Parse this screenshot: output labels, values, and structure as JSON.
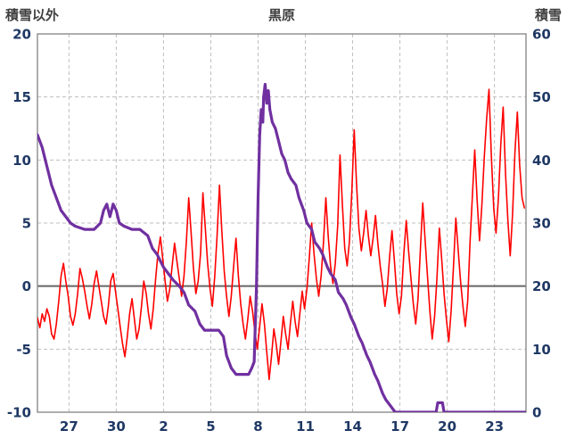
{
  "header": {
    "left_axis_title": "積雪以外",
    "title": "黒原",
    "right_axis_title": "積雪"
  },
  "colors": {
    "background": "#ffffff",
    "grid": "#bfbfbf",
    "border": "#8c8c8c",
    "zero_line": "#666666",
    "tick_text": "#1f3864",
    "title_text": "#3f3f3f",
    "red_series": "#ff0000",
    "purple_series": "#7030a0"
  },
  "chart_data": {
    "type": "line",
    "title": "黒原",
    "grid": true,
    "legend": "none",
    "left_axis": {
      "label": "積雪以外",
      "range": [
        -10,
        20
      ],
      "ticks": [
        20,
        15,
        10,
        5,
        0,
        -5,
        -10
      ]
    },
    "right_axis": {
      "label": "積雪",
      "range": [
        0,
        60
      ],
      "ticks": [
        60,
        50,
        40,
        30,
        20,
        10,
        0
      ]
    },
    "x_axis": {
      "range": [
        0,
        31
      ],
      "tick_labels": [
        "27",
        "30",
        "2",
        "5",
        "8",
        "11",
        "14",
        "17",
        "20",
        "23"
      ],
      "tick_positions": [
        2,
        5,
        8,
        11,
        14,
        17,
        20,
        23,
        26,
        29
      ]
    },
    "zero_line_left_value": 0,
    "series": [
      {
        "name": "積雪以外",
        "axis": "left",
        "color": "#ff0000",
        "width": 1.6,
        "points": [
          [
            0.0,
            -2.5
          ],
          [
            0.15,
            -3.3
          ],
          [
            0.3,
            -2.2
          ],
          [
            0.45,
            -2.8
          ],
          [
            0.6,
            -1.8
          ],
          [
            0.75,
            -2.4
          ],
          [
            0.9,
            -3.8
          ],
          [
            1.05,
            -4.2
          ],
          [
            1.2,
            -3.0
          ],
          [
            1.35,
            -1.2
          ],
          [
            1.5,
            0.8
          ],
          [
            1.65,
            1.8
          ],
          [
            1.8,
            0.4
          ],
          [
            1.95,
            -0.8
          ],
          [
            2.1,
            -2.4
          ],
          [
            2.25,
            -3.1
          ],
          [
            2.4,
            -2.2
          ],
          [
            2.55,
            -0.6
          ],
          [
            2.7,
            1.4
          ],
          [
            2.85,
            0.6
          ],
          [
            3.0,
            -0.4
          ],
          [
            3.15,
            -1.6
          ],
          [
            3.3,
            -2.6
          ],
          [
            3.45,
            -1.4
          ],
          [
            3.6,
            0.2
          ],
          [
            3.75,
            1.2
          ],
          [
            3.9,
            0.0
          ],
          [
            4.05,
            -1.2
          ],
          [
            4.2,
            -2.4
          ],
          [
            4.35,
            -3.0
          ],
          [
            4.5,
            -1.6
          ],
          [
            4.65,
            0.4
          ],
          [
            4.8,
            1.0
          ],
          [
            4.95,
            -0.4
          ],
          [
            5.1,
            -1.8
          ],
          [
            5.25,
            -3.2
          ],
          [
            5.4,
            -4.6
          ],
          [
            5.55,
            -5.6
          ],
          [
            5.7,
            -4.0
          ],
          [
            5.85,
            -2.2
          ],
          [
            6.0,
            -1.0
          ],
          [
            6.15,
            -2.6
          ],
          [
            6.3,
            -4.2
          ],
          [
            6.45,
            -3.4
          ],
          [
            6.6,
            -1.6
          ],
          [
            6.75,
            0.4
          ],
          [
            6.9,
            -0.6
          ],
          [
            7.05,
            -2.2
          ],
          [
            7.2,
            -3.4
          ],
          [
            7.35,
            -1.8
          ],
          [
            7.5,
            0.6
          ],
          [
            7.65,
            2.6
          ],
          [
            7.8,
            3.9
          ],
          [
            7.95,
            2.2
          ],
          [
            8.1,
            0.4
          ],
          [
            8.25,
            -1.2
          ],
          [
            8.4,
            -0.2
          ],
          [
            8.55,
            1.6
          ],
          [
            8.7,
            3.4
          ],
          [
            8.85,
            2.0
          ],
          [
            9.0,
            0.6
          ],
          [
            9.15,
            -0.8
          ],
          [
            9.3,
            0.8
          ],
          [
            9.45,
            3.6
          ],
          [
            9.6,
            7.0
          ],
          [
            9.75,
            4.2
          ],
          [
            9.9,
            1.4
          ],
          [
            10.05,
            -0.6
          ],
          [
            10.2,
            0.4
          ],
          [
            10.35,
            2.6
          ],
          [
            10.5,
            7.4
          ],
          [
            10.65,
            4.6
          ],
          [
            10.8,
            1.8
          ],
          [
            10.95,
            -0.2
          ],
          [
            11.1,
            -1.6
          ],
          [
            11.25,
            0.8
          ],
          [
            11.4,
            4.0
          ],
          [
            11.55,
            8.0
          ],
          [
            11.7,
            4.4
          ],
          [
            11.85,
            1.2
          ],
          [
            12.0,
            -0.8
          ],
          [
            12.15,
            -2.4
          ],
          [
            12.3,
            -0.8
          ],
          [
            12.45,
            1.6
          ],
          [
            12.6,
            3.8
          ],
          [
            12.75,
            0.8
          ],
          [
            12.9,
            -1.4
          ],
          [
            13.05,
            -3.0
          ],
          [
            13.2,
            -4.2
          ],
          [
            13.35,
            -2.6
          ],
          [
            13.5,
            -0.8
          ],
          [
            13.65,
            -2.0
          ],
          [
            13.8,
            -3.6
          ],
          [
            13.95,
            -5.0
          ],
          [
            14.1,
            -3.2
          ],
          [
            14.25,
            -1.4
          ],
          [
            14.4,
            -3.0
          ],
          [
            14.55,
            -5.2
          ],
          [
            14.7,
            -7.4
          ],
          [
            14.85,
            -5.6
          ],
          [
            15.0,
            -3.4
          ],
          [
            15.15,
            -4.6
          ],
          [
            15.3,
            -6.2
          ],
          [
            15.45,
            -4.4
          ],
          [
            15.6,
            -2.4
          ],
          [
            15.75,
            -3.8
          ],
          [
            15.9,
            -5.0
          ],
          [
            16.05,
            -3.0
          ],
          [
            16.2,
            -1.2
          ],
          [
            16.35,
            -2.8
          ],
          [
            16.5,
            -4.0
          ],
          [
            16.65,
            -2.2
          ],
          [
            16.8,
            -0.4
          ],
          [
            16.95,
            -1.8
          ],
          [
            17.1,
            -0.2
          ],
          [
            17.25,
            2.2
          ],
          [
            17.4,
            5.0
          ],
          [
            17.55,
            2.6
          ],
          [
            17.7,
            0.6
          ],
          [
            17.85,
            -0.8
          ],
          [
            18.0,
            0.8
          ],
          [
            18.15,
            3.4
          ],
          [
            18.3,
            7.0
          ],
          [
            18.45,
            4.0
          ],
          [
            18.6,
            1.6
          ],
          [
            18.75,
            0.2
          ],
          [
            18.9,
            1.8
          ],
          [
            19.05,
            4.8
          ],
          [
            19.2,
            10.4
          ],
          [
            19.35,
            6.4
          ],
          [
            19.5,
            3.0
          ],
          [
            19.65,
            1.6
          ],
          [
            19.8,
            3.6
          ],
          [
            19.95,
            7.6
          ],
          [
            20.1,
            12.4
          ],
          [
            20.25,
            8.0
          ],
          [
            20.4,
            4.6
          ],
          [
            20.55,
            2.8
          ],
          [
            20.7,
            4.2
          ],
          [
            20.85,
            6.0
          ],
          [
            21.0,
            4.0
          ],
          [
            21.15,
            2.4
          ],
          [
            21.3,
            3.8
          ],
          [
            21.45,
            5.6
          ],
          [
            21.6,
            3.4
          ],
          [
            21.75,
            1.6
          ],
          [
            21.9,
            0.2
          ],
          [
            22.05,
            -1.6
          ],
          [
            22.2,
            -0.2
          ],
          [
            22.35,
            2.4
          ],
          [
            22.5,
            4.4
          ],
          [
            22.65,
            2.0
          ],
          [
            22.8,
            -0.6
          ],
          [
            22.95,
            -2.2
          ],
          [
            23.1,
            -0.8
          ],
          [
            23.25,
            2.6
          ],
          [
            23.4,
            5.2
          ],
          [
            23.55,
            2.8
          ],
          [
            23.7,
            0.6
          ],
          [
            23.85,
            -1.4
          ],
          [
            24.0,
            -3.0
          ],
          [
            24.15,
            -1.0
          ],
          [
            24.3,
            3.0
          ],
          [
            24.45,
            6.6
          ],
          [
            24.6,
            3.6
          ],
          [
            24.75,
            0.8
          ],
          [
            24.9,
            -2.0
          ],
          [
            25.05,
            -4.2
          ],
          [
            25.2,
            -2.4
          ],
          [
            25.35,
            0.6
          ],
          [
            25.5,
            4.6
          ],
          [
            25.65,
            2.2
          ],
          [
            25.8,
            -0.6
          ],
          [
            25.95,
            -2.6
          ],
          [
            26.1,
            -4.4
          ],
          [
            26.25,
            -2.0
          ],
          [
            26.4,
            1.6
          ],
          [
            26.55,
            5.4
          ],
          [
            26.7,
            2.8
          ],
          [
            26.85,
            0.4
          ],
          [
            27.0,
            -1.6
          ],
          [
            27.15,
            -3.2
          ],
          [
            27.3,
            -1.2
          ],
          [
            27.45,
            3.4
          ],
          [
            27.6,
            7.2
          ],
          [
            27.75,
            10.8
          ],
          [
            27.9,
            6.8
          ],
          [
            28.05,
            3.6
          ],
          [
            28.2,
            6.4
          ],
          [
            28.35,
            10.2
          ],
          [
            28.5,
            13.2
          ],
          [
            28.65,
            15.6
          ],
          [
            28.8,
            10.4
          ],
          [
            28.95,
            6.2
          ],
          [
            29.1,
            4.2
          ],
          [
            29.25,
            7.0
          ],
          [
            29.4,
            11.2
          ],
          [
            29.55,
            14.2
          ],
          [
            29.7,
            9.0
          ],
          [
            29.85,
            5.2
          ],
          [
            30.0,
            2.4
          ],
          [
            30.15,
            5.8
          ],
          [
            30.3,
            10.6
          ],
          [
            30.45,
            13.8
          ],
          [
            30.6,
            9.6
          ],
          [
            30.75,
            7.0
          ],
          [
            30.9,
            6.2
          ]
        ]
      },
      {
        "name": "積雪",
        "axis": "right",
        "color": "#7030a0",
        "width": 3.2,
        "points": [
          [
            0.0,
            44
          ],
          [
            0.3,
            42
          ],
          [
            0.6,
            39
          ],
          [
            0.9,
            36
          ],
          [
            1.2,
            34
          ],
          [
            1.5,
            32
          ],
          [
            1.8,
            31
          ],
          [
            2.1,
            30
          ],
          [
            2.4,
            29.5
          ],
          [
            3.0,
            29
          ],
          [
            3.6,
            29
          ],
          [
            4.0,
            30
          ],
          [
            4.2,
            32
          ],
          [
            4.4,
            33
          ],
          [
            4.6,
            31
          ],
          [
            4.8,
            33
          ],
          [
            5.0,
            32
          ],
          [
            5.2,
            30
          ],
          [
            5.5,
            29.5
          ],
          [
            6.0,
            29
          ],
          [
            6.5,
            29
          ],
          [
            7.0,
            28
          ],
          [
            7.3,
            26
          ],
          [
            7.6,
            25
          ],
          [
            8.0,
            23
          ],
          [
            8.3,
            22
          ],
          [
            8.6,
            21
          ],
          [
            9.0,
            20
          ],
          [
            9.3,
            19
          ],
          [
            9.6,
            17
          ],
          [
            10.0,
            16
          ],
          [
            10.3,
            14
          ],
          [
            10.6,
            13
          ],
          [
            11.0,
            13
          ],
          [
            11.5,
            13
          ],
          [
            11.8,
            12
          ],
          [
            12.0,
            9
          ],
          [
            12.3,
            7
          ],
          [
            12.6,
            6
          ],
          [
            13.0,
            6
          ],
          [
            13.4,
            6
          ],
          [
            13.6,
            7
          ],
          [
            13.75,
            8
          ],
          [
            13.9,
            20
          ],
          [
            14.0,
            34
          ],
          [
            14.1,
            44
          ],
          [
            14.2,
            48
          ],
          [
            14.3,
            46
          ],
          [
            14.35,
            50
          ],
          [
            14.45,
            52
          ],
          [
            14.55,
            49
          ],
          [
            14.65,
            51
          ],
          [
            14.75,
            48
          ],
          [
            14.9,
            46
          ],
          [
            15.1,
            45
          ],
          [
            15.3,
            43
          ],
          [
            15.5,
            41
          ],
          [
            15.7,
            40
          ],
          [
            15.9,
            38
          ],
          [
            16.1,
            37
          ],
          [
            16.4,
            36
          ],
          [
            16.6,
            34
          ],
          [
            16.9,
            32
          ],
          [
            17.1,
            30
          ],
          [
            17.4,
            29
          ],
          [
            17.6,
            27
          ],
          [
            17.9,
            26
          ],
          [
            18.1,
            25
          ],
          [
            18.4,
            23
          ],
          [
            18.6,
            22
          ],
          [
            18.9,
            21
          ],
          [
            19.1,
            19
          ],
          [
            19.4,
            18
          ],
          [
            19.6,
            17
          ],
          [
            19.9,
            15
          ],
          [
            20.1,
            14
          ],
          [
            20.4,
            12
          ],
          [
            20.6,
            11
          ],
          [
            20.9,
            9
          ],
          [
            21.1,
            8
          ],
          [
            21.4,
            6
          ],
          [
            21.6,
            5
          ],
          [
            21.9,
            3
          ],
          [
            22.1,
            2
          ],
          [
            22.4,
            1
          ],
          [
            22.7,
            0
          ],
          [
            25.3,
            0
          ],
          [
            25.4,
            1.5
          ],
          [
            25.7,
            1.5
          ],
          [
            25.8,
            0
          ],
          [
            31.0,
            0
          ]
        ]
      }
    ]
  }
}
